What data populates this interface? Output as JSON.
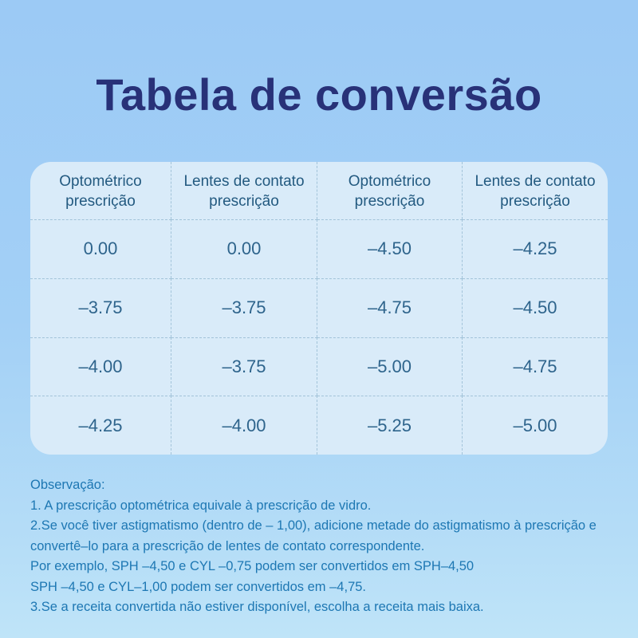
{
  "page": {
    "title": "Tabela de conversão",
    "colors": {
      "background_top": "#9ccaf5",
      "background_bottom": "#bfe4f8",
      "title_text": "#283178",
      "table_background": "#d9ebf9",
      "table_header_text": "#235a80",
      "table_value_text": "#2e648c",
      "divider_dashed": "#a2c3d9",
      "notes_text": "#1d77b3"
    }
  },
  "table": {
    "headers": [
      {
        "line1": "Optométrico",
        "line2": "prescrição"
      },
      {
        "line1": "Lentes de contato",
        "line2": "prescrição"
      },
      {
        "line1": "Optométrico",
        "line2": "prescrição"
      },
      {
        "line1": "Lentes de contato",
        "line2": "prescrição"
      }
    ],
    "rows": [
      [
        "0.00",
        "0.00",
        "–4.50",
        "–4.25"
      ],
      [
        "–3.75",
        "–3.75",
        "–4.75",
        "–4.50"
      ],
      [
        "–4.00",
        "–3.75",
        "–5.00",
        "–4.75"
      ],
      [
        "–4.25",
        "–4.00",
        "–5.25",
        "–5.00"
      ]
    ]
  },
  "notes": {
    "heading": "Observação:",
    "lines": [
      "1. A prescrição optométrica equivale à prescrição de vidro.",
      "2.Se você tiver astigmatismo (dentro de – 1,00), adicione metade do astigmatismo à prescrição e",
      "convertê–lo para a prescrição de lentes de contato correspondente.",
      "Por exemplo, SPH –4,50 e CYL –0,75 podem ser convertidos em SPH–4,50",
      "SPH –4,50 e CYL–1,00 podem ser convertidos em –4,75.",
      "3.Se a receita convertida não estiver disponível, escolha a receita mais baixa."
    ]
  }
}
